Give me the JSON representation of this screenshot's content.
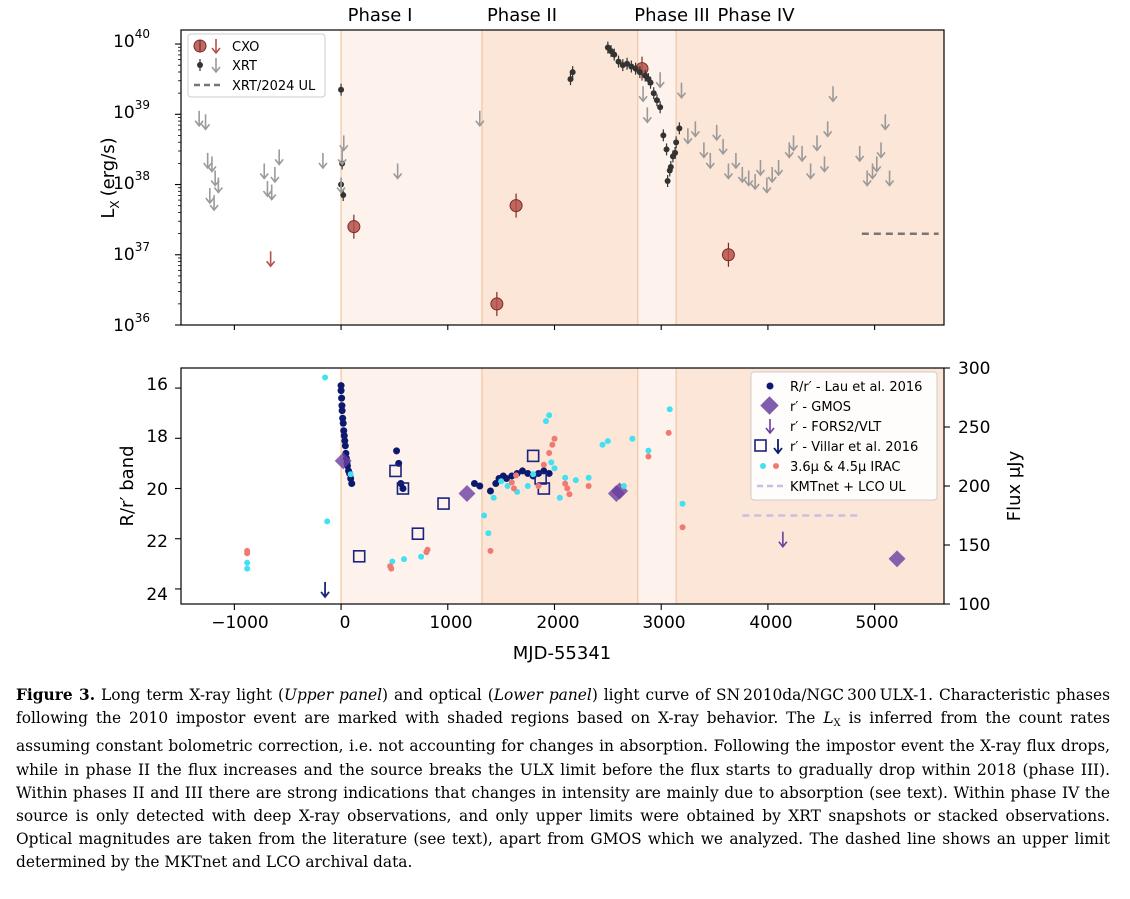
{
  "figure": {
    "phase_labels": [
      "Phase I",
      "Phase II",
      "Phase III",
      "Phase IV"
    ],
    "phase_bounds_mjd": [
      0,
      1320,
      2780,
      3140,
      5650
    ],
    "phase_colors": [
      "#fdf3ec",
      "#fbe6d8",
      "#fdf3ec",
      "#fbe6d8"
    ],
    "upper": {
      "ylabel": "L",
      "ylabel_sub": "X",
      "ylabel_unit": "(erg/s)",
      "ytick_base": "10",
      "ytick_exps": [
        "36",
        "37",
        "38",
        "39",
        "40"
      ],
      "legend": [
        "CXO",
        "XRT",
        "XRT/2024 UL"
      ]
    },
    "lower": {
      "ylabel": "R/r′ band",
      "y2label": "Flux μJy",
      "yticks": [
        "16",
        "18",
        "20",
        "22",
        "24"
      ],
      "y2ticks": [
        "100",
        "150",
        "200",
        "250",
        "300"
      ],
      "xlabel": "MJD-55341",
      "xticks": [
        "−1000",
        "0",
        "1000",
        "2000",
        "3000",
        "4000",
        "5000"
      ],
      "legend": [
        "R/r′ - Lau et al. 2016",
        "r′ - GMOS",
        "r′ - FORS2/VLT",
        "r′ - Villar et al. 2016",
        "3.6μ & 4.5μ IRAC",
        "KMTnet + LCO UL"
      ]
    }
  },
  "chart_data": [
    {
      "type": "scatter",
      "title": "",
      "xlabel": "",
      "ylabel": "L_X (erg/s)",
      "xlim": [
        -1500,
        5650
      ],
      "ylim_log10": [
        36,
        40.2
      ],
      "series": [
        {
          "name": "CXO",
          "color": "#b5504a",
          "x": [
            120,
            1460,
            1640,
            2820,
            3630
          ],
          "log_lx": [
            37.4,
            36.3,
            37.7,
            39.65,
            37.0
          ]
        },
        {
          "name": "CXO upper limit",
          "color": "#b5504a",
          "x": [
            -660
          ],
          "log_lx": [
            36.95
          ]
        },
        {
          "name": "XRT",
          "color": "#333333",
          "x": [
            0,
            0,
            10,
            20,
            2150,
            2170,
            2500,
            2530,
            2560,
            2600,
            2640,
            2680,
            2720,
            2760,
            2800,
            2850,
            2880,
            2900,
            2930,
            2960,
            2990,
            3020,
            3050,
            3080,
            3110,
            3140,
            3170,
            3060,
            3090,
            3130
          ],
          "log_lx": [
            39.35,
            38.0,
            38.3,
            37.85,
            39.5,
            39.6,
            39.95,
            39.9,
            39.85,
            39.75,
            39.7,
            39.72,
            39.68,
            39.65,
            39.6,
            39.55,
            39.5,
            39.45,
            39.3,
            39.2,
            39.1,
            38.7,
            38.5,
            38.2,
            38.4,
            38.6,
            38.8,
            38.05,
            38.25,
            38.45
          ]
        },
        {
          "name": "XRT upper limit",
          "color": "#9a9a9a",
          "x": [
            -1330,
            -1270,
            -1250,
            -1210,
            -1180,
            -1150,
            -1230,
            -1190,
            -720,
            -690,
            -650,
            -620,
            -580,
            -170,
            0,
            10,
            25,
            530,
            1300,
            2830,
            2870,
            2990,
            3190,
            3250,
            3320,
            3400,
            3460,
            3520,
            3580,
            3630,
            3700,
            3760,
            3820,
            3880,
            3930,
            3990,
            4040,
            4100,
            4200,
            4240,
            4320,
            4400,
            4460,
            4530,
            4560,
            4610,
            4860,
            4930,
            4980,
            5020,
            5060,
            5100,
            5140
          ],
          "log_lx": [
            38.95,
            38.9,
            38.35,
            38.3,
            38.1,
            38.0,
            37.85,
            37.75,
            38.2,
            37.95,
            37.9,
            38.15,
            38.4,
            38.35,
            38.0,
            38.4,
            38.6,
            38.2,
            38.95,
            39.3,
            39.0,
            39.5,
            39.35,
            38.7,
            38.8,
            38.5,
            38.35,
            38.75,
            38.55,
            38.2,
            38.35,
            38.15,
            38.1,
            38.05,
            38.25,
            38.0,
            38.15,
            38.25,
            38.5,
            38.6,
            38.45,
            38.2,
            38.6,
            38.3,
            38.8,
            39.3,
            38.45,
            38.1,
            38.2,
            38.3,
            38.5,
            38.9,
            38.1
          ]
        },
        {
          "name": "XRT/2024 UL",
          "color": "#777777",
          "x": [
            4880,
            5600
          ],
          "log_lx": [
            37.3,
            37.3
          ]
        }
      ]
    },
    {
      "type": "scatter",
      "title": "",
      "xlabel": "MJD-55341",
      "ylabel": "R/r' band",
      "y2label": "Flux uJy",
      "xlim": [
        -1500,
        5650
      ],
      "ylim": [
        24.6,
        15.2
      ],
      "y2lim": [
        100,
        300
      ],
      "series": [
        {
          "name": "R/r' - Lau et al. 2016",
          "color": "#0b1a6e",
          "axis": "mag",
          "x": [
            0,
            0,
            5,
            8,
            10,
            15,
            20,
            25,
            30,
            35,
            40,
            45,
            50,
            55,
            60,
            70,
            80,
            90,
            100,
            520,
            540,
            560,
            580,
            1250,
            1300,
            1400,
            1450,
            1480,
            1520,
            1550,
            1600,
            1650,
            1700,
            1750,
            1800,
            1850,
            1900,
            1950
          ],
          "mag": [
            15.9,
            16.1,
            16.4,
            16.7,
            16.9,
            17.2,
            17.4,
            17.7,
            17.9,
            18.1,
            18.3,
            18.6,
            18.8,
            19.0,
            19.1,
            19.3,
            19.4,
            19.6,
            19.8,
            18.5,
            19.0,
            19.8,
            20.0,
            19.8,
            19.9,
            20.1,
            19.8,
            19.6,
            19.5,
            19.6,
            19.5,
            19.4,
            19.3,
            19.4,
            19.5,
            19.4,
            19.3,
            19.4
          ]
        },
        {
          "name": "r' - GMOS",
          "color": "#6a3fa0",
          "axis": "mag",
          "x": [
            20,
            1180,
            2580,
            2610,
            5210
          ],
          "mag": [
            18.9,
            20.2,
            20.2,
            20.1,
            22.8
          ]
        },
        {
          "name": "r' - FORS2/VLT",
          "color": "#6a3fa0",
          "axis": "mag",
          "x": [
            4140
          ],
          "mag": [
            22.0
          ]
        },
        {
          "name": "r' - Villar et al. 2016",
          "color": "#1a237e",
          "axis": "mag",
          "x": [
            170,
            510,
            580,
            720,
            960,
            1800,
            1870,
            1900
          ],
          "mag": [
            22.7,
            19.3,
            20.0,
            21.8,
            20.6,
            18.7,
            19.6,
            20.0
          ]
        },
        {
          "name": "r' - Villar et al. 2016 upper limit",
          "color": "#1a237e",
          "axis": "mag",
          "x": [
            -150
          ],
          "mag": [
            24.0
          ]
        },
        {
          "name": "3.6u IRAC",
          "color": "#42e0f0",
          "axis": "flux",
          "x": [
            -880,
            -880,
            -130,
            -150,
            90,
            480,
            590,
            750,
            1340,
            1380,
            1430,
            1500,
            1560,
            1650,
            1750,
            1800,
            1920,
            1950,
            1970,
            2000,
            2050,
            2100,
            2200,
            2320,
            2450,
            2500,
            2650,
            2730,
            2880,
            3080,
            3200
          ],
          "flux": [
            135,
            130,
            170,
            292,
            210,
            136,
            138,
            140,
            175,
            160,
            190,
            204,
            200,
            195,
            200,
            210,
            255,
            260,
            220,
            215,
            190,
            207,
            205,
            207,
            235,
            238,
            200,
            240,
            230,
            265,
            185
          ]
        },
        {
          "name": "4.5u IRAC",
          "color": "#f07a72",
          "axis": "flux",
          "x": [
            -880,
            -880,
            460,
            470,
            800,
            810,
            1400,
            1600,
            1620,
            1640,
            1850,
            1900,
            1950,
            1980,
            2000,
            2100,
            2120,
            2140,
            2320,
            2880,
            3070,
            3200
          ],
          "flux": [
            145,
            143,
            132,
            130,
            144,
            146,
            145,
            203,
            198,
            209,
            200,
            218,
            228,
            235,
            240,
            202,
            198,
            193,
            200,
            225,
            245,
            165
          ]
        },
        {
          "name": "KMTnet + LCO UL",
          "color": "#c6c1e4",
          "axis": "flux",
          "x": [
            3760,
            4880
          ],
          "flux": [
            175,
            175
          ]
        }
      ]
    }
  ],
  "caption": {
    "label": "Figure 3.",
    "p1": " Long term X-ray light (",
    "p1i": "Upper panel",
    "p2": ") and optical (",
    "p2i": "Lower panel",
    "p3": ") light curve of SN 2010da/NGC 300 ULX-1. Characteristic phases following the 2010 impostor event are marked with shaded regions based on X-ray behavior. The ",
    "lx": "L",
    "lx_sub": "X",
    "p4": " is inferred from the count rates assuming constant bolometric correction, i.e.  not accounting for changes in absorption. Following the impostor event the X-ray flux drops, while in phase II the flux increases and the source breaks the ULX limit before the flux starts to gradually drop within 2018 (phase III). Within phases II and III there are strong indications that changes in intensity are mainly due to absorption (see text). Within phase IV the source is only detected with deep X-ray observations, and only upper limits were obtained by XRT snapshots or stacked observations. Optical magnitudes are taken from the literature (see text), apart from GMOS which we analyzed.  The dashed line shows an upper limit determined by the MKTnet and LCO archival data."
  }
}
